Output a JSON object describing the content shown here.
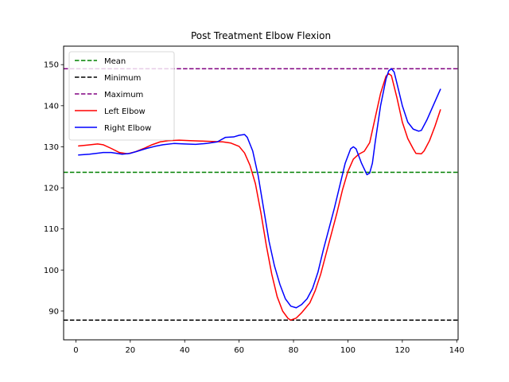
{
  "chart_data": {
    "type": "line",
    "title": "Post Treatment Elbow Flexion",
    "xlabel": "",
    "ylabel": "",
    "xlim": [
      -4.5,
      140.5
    ],
    "ylim": [
      83,
      154.5
    ],
    "xticks": [
      0,
      20,
      40,
      60,
      80,
      100,
      120,
      140
    ],
    "yticks": [
      90,
      100,
      110,
      120,
      130,
      140,
      150
    ],
    "grid": false,
    "legend": "top-left",
    "reference_lines": [
      {
        "name": "Mean",
        "value": 123.8,
        "color": "#008000",
        "style": "dashed"
      },
      {
        "name": "Minimum",
        "value": 87.8,
        "color": "#000000",
        "style": "dashed"
      },
      {
        "name": "Maximum",
        "value": 149.0,
        "color": "#800080",
        "style": "dashed"
      }
    ],
    "series": [
      {
        "name": "Left Elbow",
        "color": "#ff0000",
        "points": [
          [
            1,
            130.2
          ],
          [
            4,
            130.4
          ],
          [
            8,
            130.7
          ],
          [
            10,
            130.5
          ],
          [
            13,
            129.6
          ],
          [
            16,
            128.6
          ],
          [
            19,
            128.3
          ],
          [
            22,
            128.8
          ],
          [
            25,
            129.6
          ],
          [
            28,
            130.5
          ],
          [
            31,
            131.2
          ],
          [
            34,
            131.5
          ],
          [
            38,
            131.6
          ],
          [
            42,
            131.5
          ],
          [
            46,
            131.4
          ],
          [
            50,
            131.3
          ],
          [
            54,
            131.2
          ],
          [
            57,
            130.9
          ],
          [
            60,
            130.1
          ],
          [
            62,
            128.5
          ],
          [
            64,
            125.5
          ],
          [
            66,
            121.0
          ],
          [
            68,
            114.0
          ],
          [
            70,
            106.0
          ],
          [
            72,
            99.0
          ],
          [
            74,
            93.5
          ],
          [
            76,
            90.0
          ],
          [
            78,
            88.2
          ],
          [
            79,
            87.8
          ],
          [
            81,
            88.3
          ],
          [
            83,
            89.6
          ],
          [
            86,
            92.0
          ],
          [
            88,
            95.0
          ],
          [
            90,
            99.0
          ],
          [
            92,
            104.0
          ],
          [
            94,
            109.0
          ],
          [
            96,
            114.0
          ],
          [
            98,
            119.5
          ],
          [
            100,
            124.0
          ],
          [
            102,
            127.0
          ],
          [
            104,
            128.2
          ],
          [
            106,
            128.9
          ],
          [
            108,
            131.0
          ],
          [
            110,
            137.0
          ],
          [
            112,
            143.0
          ],
          [
            114,
            147.2
          ],
          [
            115,
            147.8
          ],
          [
            116,
            147.3
          ],
          [
            118,
            142.0
          ],
          [
            120,
            136.0
          ],
          [
            122,
            132.0
          ],
          [
            124,
            129.5
          ],
          [
            125,
            128.4
          ],
          [
            127,
            128.3
          ],
          [
            128,
            129.0
          ],
          [
            130,
            131.5
          ],
          [
            132,
            135.0
          ],
          [
            134,
            139.0
          ]
        ]
      },
      {
        "name": "Right Elbow",
        "color": "#0000ff",
        "points": [
          [
            1,
            128.0
          ],
          [
            5,
            128.2
          ],
          [
            10,
            128.6
          ],
          [
            13,
            128.6
          ],
          [
            17,
            128.2
          ],
          [
            20,
            128.4
          ],
          [
            23,
            129.0
          ],
          [
            26,
            129.6
          ],
          [
            29,
            130.1
          ],
          [
            32,
            130.5
          ],
          [
            36,
            130.8
          ],
          [
            40,
            130.7
          ],
          [
            44,
            130.6
          ],
          [
            48,
            130.8
          ],
          [
            52,
            131.2
          ],
          [
            55,
            132.3
          ],
          [
            58,
            132.4
          ],
          [
            60,
            132.8
          ],
          [
            62,
            133.0
          ],
          [
            63,
            132.3
          ],
          [
            65,
            129.0
          ],
          [
            67,
            123.0
          ],
          [
            69,
            115.0
          ],
          [
            71,
            107.0
          ],
          [
            73,
            101.0
          ],
          [
            75,
            96.5
          ],
          [
            77,
            93.0
          ],
          [
            79,
            91.2
          ],
          [
            81,
            90.8
          ],
          [
            83,
            91.6
          ],
          [
            85,
            93.0
          ],
          [
            87,
            95.5
          ],
          [
            89,
            99.5
          ],
          [
            91,
            105.0
          ],
          [
            93,
            110.0
          ],
          [
            95,
            115.0
          ],
          [
            97,
            120.5
          ],
          [
            99,
            126.0
          ],
          [
            101,
            129.5
          ],
          [
            102,
            130.0
          ],
          [
            103,
            129.5
          ],
          [
            105,
            126.0
          ],
          [
            107,
            123.2
          ],
          [
            108,
            123.6
          ],
          [
            109,
            126.0
          ],
          [
            110,
            131.0
          ],
          [
            112,
            140.0
          ],
          [
            114,
            146.5
          ],
          [
            115,
            148.5
          ],
          [
            116,
            149.0
          ],
          [
            117,
            148.2
          ],
          [
            118,
            145.5
          ],
          [
            120,
            140.0
          ],
          [
            122,
            136.0
          ],
          [
            124,
            134.3
          ],
          [
            126,
            133.8
          ],
          [
            127,
            134.0
          ],
          [
            129,
            136.5
          ],
          [
            131,
            139.5
          ],
          [
            134,
            144.0
          ]
        ]
      }
    ]
  }
}
